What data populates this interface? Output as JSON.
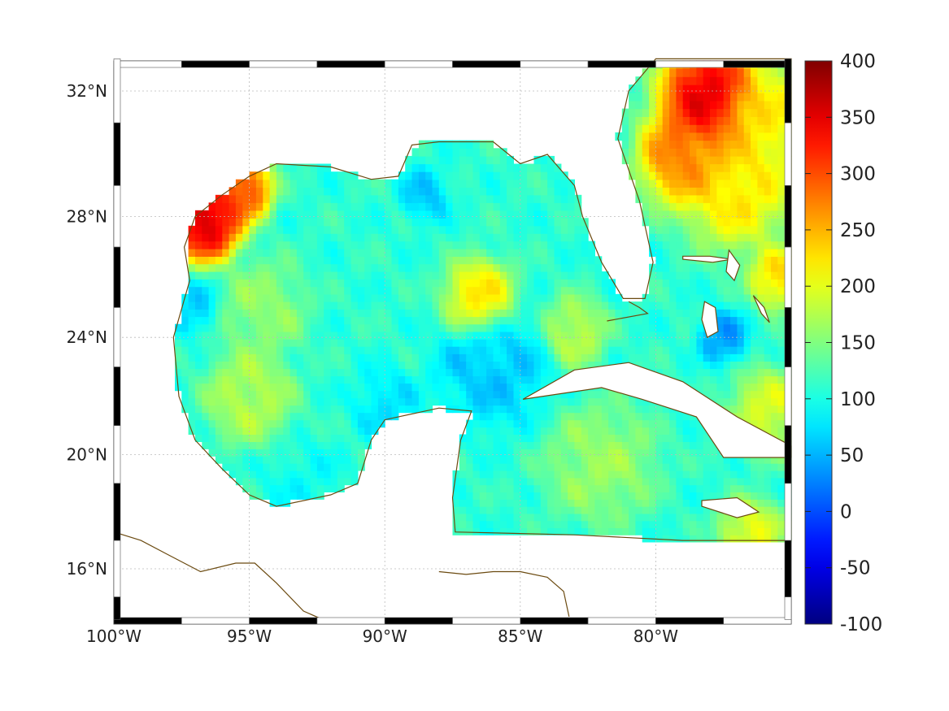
{
  "map": {
    "extent": {
      "lon": [
        -100,
        -75
      ],
      "lat": [
        14.2,
        33
      ]
    },
    "lon_ticks": [
      {
        "value": -100,
        "label": "100°W"
      },
      {
        "value": -95,
        "label": "95°W"
      },
      {
        "value": -90,
        "label": "90°W"
      },
      {
        "value": -85,
        "label": "85°W"
      },
      {
        "value": -80,
        "label": "80°W"
      }
    ],
    "lat_ticks": [
      {
        "value": 32,
        "label": "32°N"
      },
      {
        "value": 28,
        "label": "28°N"
      },
      {
        "value": 24,
        "label": "24°N"
      },
      {
        "value": 20,
        "label": "20°N"
      },
      {
        "value": 16,
        "label": "16°N"
      }
    ],
    "coast_color": "#6b4a10",
    "grid_color": "#bbbbbb"
  },
  "colorbar": {
    "min": -100,
    "max": 400,
    "colormap": "jet",
    "ticks": [
      {
        "value": 400,
        "label": "400"
      },
      {
        "value": 350,
        "label": "350"
      },
      {
        "value": 300,
        "label": "300"
      },
      {
        "value": 250,
        "label": "250"
      },
      {
        "value": 200,
        "label": "200"
      },
      {
        "value": 150,
        "label": "150"
      },
      {
        "value": 100,
        "label": "100"
      },
      {
        "value": 50,
        "label": "50"
      },
      {
        "value": 0,
        "label": "0"
      },
      {
        "value": -50,
        "label": "-50"
      },
      {
        "value": -100,
        "label": "-100"
      }
    ]
  },
  "field": {
    "base": 110,
    "features": [
      {
        "lon": -96.6,
        "lat": 27.9,
        "value": 400,
        "r": 0.9
      },
      {
        "lon": -95.2,
        "lat": 28.9,
        "value": 330,
        "r": 0.7
      },
      {
        "lon": -78.0,
        "lat": 31.8,
        "value": 395,
        "r": 1.2
      },
      {
        "lon": -79.0,
        "lat": 30.0,
        "value": 300,
        "r": 1.1
      },
      {
        "lon": -77.0,
        "lat": 29.0,
        "value": 240,
        "r": 1.4
      },
      {
        "lon": -76.0,
        "lat": 31.2,
        "value": 230,
        "r": 1.3
      },
      {
        "lon": -86.5,
        "lat": 25.3,
        "value": 245,
        "r": 0.9
      },
      {
        "lon": -86.0,
        "lat": 23.0,
        "value": 55,
        "r": 1.4
      },
      {
        "lon": -77.5,
        "lat": 24.0,
        "value": 30,
        "r": 0.6
      },
      {
        "lon": -88.5,
        "lat": 28.7,
        "value": 55,
        "r": 0.6
      },
      {
        "lon": -90.0,
        "lat": 21.8,
        "value": 70,
        "r": 0.8
      },
      {
        "lon": -95.0,
        "lat": 22.0,
        "value": 185,
        "r": 1.1
      },
      {
        "lon": -94.5,
        "lat": 25.0,
        "value": 165,
        "r": 1.1
      },
      {
        "lon": -76.5,
        "lat": 17.3,
        "value": 215,
        "r": 0.8
      },
      {
        "lon": -82.0,
        "lat": 19.7,
        "value": 170,
        "r": 1.4
      },
      {
        "lon": -75.8,
        "lat": 21.5,
        "value": 205,
        "r": 1.0
      },
      {
        "lon": -83.0,
        "lat": 24.2,
        "value": 190,
        "r": 0.8
      },
      {
        "lon": -75.5,
        "lat": 26.0,
        "value": 245,
        "r": 0.7
      },
      {
        "lon": -97.0,
        "lat": 25.0,
        "value": 60,
        "r": 0.6
      },
      {
        "lon": -93.0,
        "lat": 19.0,
        "value": 90,
        "r": 1.0
      }
    ],
    "ocean_boundary": [
      [
        -97.2,
        25.9
      ],
      [
        -97.4,
        27.0
      ],
      [
        -97.0,
        28.0
      ],
      [
        -96.0,
        28.7
      ],
      [
        -95.0,
        29.3
      ],
      [
        -94.0,
        29.7
      ],
      [
        -92.0,
        29.6
      ],
      [
        -90.5,
        29.2
      ],
      [
        -89.5,
        29.3
      ],
      [
        -89.0,
        30.3
      ],
      [
        -88.0,
        30.4
      ],
      [
        -86.0,
        30.4
      ],
      [
        -85.0,
        29.7
      ],
      [
        -84.0,
        30.0
      ],
      [
        -83.0,
        29.0
      ],
      [
        -82.7,
        28.0
      ],
      [
        -82.0,
        26.5
      ],
      [
        -81.2,
        25.3
      ],
      [
        -80.4,
        25.3
      ],
      [
        -80.1,
        26.5
      ],
      [
        -80.6,
        28.5
      ],
      [
        -81.4,
        30.5
      ],
      [
        -81.0,
        32.0
      ],
      [
        -80.0,
        33.0
      ],
      [
        -75.0,
        33.0
      ],
      [
        -75.0,
        17.0
      ],
      [
        -79.0,
        17.0
      ],
      [
        -83.0,
        17.2
      ],
      [
        -87.4,
        17.3
      ],
      [
        -87.5,
        18.5
      ],
      [
        -87.2,
        20.5
      ],
      [
        -86.8,
        21.5
      ],
      [
        -88.0,
        21.6
      ],
      [
        -90.0,
        21.2
      ],
      [
        -90.5,
        20.5
      ],
      [
        -91.0,
        19.0
      ],
      [
        -92.0,
        18.6
      ],
      [
        -94.0,
        18.2
      ],
      [
        -95.0,
        18.6
      ],
      [
        -96.0,
        19.5
      ],
      [
        -97.0,
        20.5
      ],
      [
        -97.6,
        22.0
      ],
      [
        -97.8,
        24.0
      ],
      [
        -97.2,
        25.9
      ]
    ],
    "islands": [
      [
        [
          -84.9,
          21.9
        ],
        [
          -83.0,
          22.9
        ],
        [
          -81.0,
          23.15
        ],
        [
          -79.0,
          22.5
        ],
        [
          -77.0,
          21.3
        ],
        [
          -75.0,
          20.3
        ],
        [
          -75.0,
          19.9
        ],
        [
          -77.5,
          19.9
        ],
        [
          -78.5,
          21.3
        ],
        [
          -80.5,
          21.9
        ],
        [
          -82.0,
          22.3
        ],
        [
          -84.9,
          21.9
        ]
      ],
      [
        [
          -78.3,
          18.4
        ],
        [
          -77.0,
          18.5
        ],
        [
          -76.2,
          18.0
        ],
        [
          -77.0,
          17.8
        ],
        [
          -78.3,
          18.2
        ],
        [
          -78.3,
          18.4
        ]
      ],
      [
        [
          -78.2,
          25.2
        ],
        [
          -77.8,
          25.0
        ],
        [
          -77.7,
          24.2
        ],
        [
          -78.1,
          24.0
        ],
        [
          -78.3,
          24.6
        ],
        [
          -78.2,
          25.2
        ]
      ],
      [
        [
          -79.0,
          26.7
        ],
        [
          -78.0,
          26.7
        ],
        [
          -77.2,
          26.6
        ],
        [
          -77.9,
          26.5
        ],
        [
          -79.0,
          26.6
        ],
        [
          -79.0,
          26.7
        ]
      ],
      [
        [
          -77.3,
          26.9
        ],
        [
          -76.9,
          26.4
        ],
        [
          -77.1,
          25.9
        ],
        [
          -77.4,
          26.2
        ],
        [
          -77.3,
          26.9
        ]
      ],
      [
        [
          -76.4,
          25.4
        ],
        [
          -76.0,
          25.0
        ],
        [
          -75.8,
          24.5
        ],
        [
          -76.1,
          24.8
        ],
        [
          -76.4,
          25.4
        ]
      ]
    ],
    "coastlines": [
      [
        [
          -100,
          17.3
        ],
        [
          -99,
          17.0
        ],
        [
          -98,
          16.5
        ],
        [
          -96.8,
          15.9
        ],
        [
          -95.5,
          16.2
        ],
        [
          -94.8,
          16.2
        ],
        [
          -94,
          15.5
        ],
        [
          -93,
          14.5
        ],
        [
          -92.3,
          14.2
        ]
      ],
      [
        [
          -88.0,
          15.9
        ],
        [
          -87,
          15.8
        ],
        [
          -86,
          15.9
        ],
        [
          -85,
          15.9
        ],
        [
          -84,
          15.7
        ],
        [
          -83.4,
          15.2
        ],
        [
          -83.2,
          14.3
        ]
      ],
      [
        [
          -81.0,
          25.2
        ],
        [
          -80.6,
          25.0
        ],
        [
          -80.3,
          24.8
        ],
        [
          -81.8,
          24.55
        ]
      ]
    ]
  }
}
